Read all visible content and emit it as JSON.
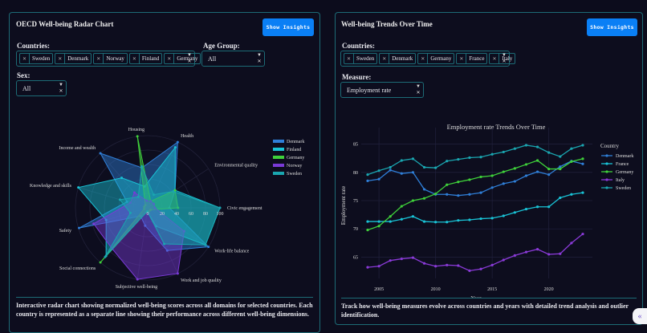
{
  "radar_panel": {
    "title": "OECD Well-being Radar Chart",
    "show_insights": "Show Insights",
    "countries_label": "Countries:",
    "countries": [
      "Sweden",
      "Denmark",
      "Norway",
      "Finland",
      "Germany"
    ],
    "age_label": "Age Group:",
    "age_value": "All",
    "sex_label": "Sex:",
    "sex_value": "All",
    "description": "Interactive radar chart showing normalized well-being scores across all domains for selected countries. Each country is represented as a separate line showing their performance across different well-being dimensions."
  },
  "trend_panel": {
    "title": "Well-being Trends Over Time",
    "show_insights": "Show Insights",
    "countries_label": "Countries:",
    "countries": [
      "Sweden",
      "Denmark",
      "Germany",
      "France",
      "Italy"
    ],
    "measure_label": "Measure:",
    "measure_value": "Employment rate",
    "description": "Track how well-being measures evolve across countries and years with detailed trend analysis and outlier identification."
  },
  "chart_data": [
    {
      "type": "radar",
      "axes": [
        "Housing",
        "Health",
        "Environmental quality",
        "Civic engagement",
        "Work-life balance",
        "Work and job quality",
        "Subjective well-being",
        "Social connections",
        "Safety",
        "Knowledge and skills",
        "Income and wealth"
      ],
      "radial_ticks": [
        0,
        20,
        40,
        60,
        80,
        100
      ],
      "range": [
        0,
        100
      ],
      "series": [
        {
          "name": "Denmark",
          "color": "#2f7fd8",
          "values": [
            56,
            100,
            45,
            30,
            100,
            65,
            25,
            15,
            99,
            30,
            100
          ]
        },
        {
          "name": "Finland",
          "color": "#19c3d6",
          "values": [
            30,
            92,
            45,
            100,
            95,
            28,
            5,
            88,
            60,
            100,
            55
          ]
        },
        {
          "name": "Germany",
          "color": "#3fd13a",
          "values": [
            100,
            10,
            45,
            42,
            5,
            5,
            5,
            100,
            5,
            5,
            5
          ]
        },
        {
          "name": "Norway",
          "color": "#7a3ad8",
          "values": [
            10,
            10,
            10,
            10,
            60,
            100,
            100,
            75,
            78,
            25,
            28
          ]
        },
        {
          "name": "Sweden",
          "color": "#1aa6b0",
          "values": [
            58,
            20,
            42,
            100,
            95,
            55,
            5,
            90,
            25,
            40,
            20
          ]
        }
      ],
      "legend_position": "right"
    },
    {
      "type": "line",
      "title": "Employment rate Trends Over Time",
      "xlabel": "Year",
      "ylabel": "Employment rate",
      "legend_title": "Country",
      "x": [
        2004,
        2005,
        2006,
        2007,
        2008,
        2009,
        2010,
        2011,
        2012,
        2013,
        2014,
        2015,
        2016,
        2017,
        2018,
        2019,
        2020,
        2021,
        2022,
        2023
      ],
      "xticks": [
        2005,
        2010,
        2015,
        2020
      ],
      "yticks": [
        65,
        70,
        75,
        80,
        85
      ],
      "ylim": [
        61.8,
        86.5
      ],
      "grid": true,
      "legend_position": "right",
      "series": [
        {
          "name": "Denmark",
          "color": "#2f7fd8",
          "values": [
            78.5,
            78.8,
            80.4,
            79.8,
            80.0,
            77.0,
            76.1,
            76.1,
            75.9,
            76.1,
            76.4,
            77.3,
            78.0,
            78.4,
            79.4,
            80.1,
            79.6,
            81.0,
            82.0,
            81.5
          ]
        },
        {
          "name": "France",
          "color": "#19c3d6",
          "values": [
            71.3,
            71.3,
            71.3,
            71.7,
            72.2,
            71.3,
            71.2,
            71.2,
            71.5,
            71.6,
            71.8,
            71.9,
            72.3,
            72.9,
            73.5,
            73.9,
            73.9,
            75.5,
            76.1,
            76.4
          ]
        },
        {
          "name": "Germany",
          "color": "#3fd13a",
          "values": [
            69.8,
            70.5,
            72.2,
            74.0,
            75.0,
            75.4,
            76.2,
            77.8,
            78.3,
            78.7,
            79.2,
            79.4,
            80.1,
            80.7,
            81.4,
            82.1,
            80.6,
            80.6,
            81.9,
            82.4
          ]
        },
        {
          "name": "Italy",
          "color": "#8a3ad8",
          "values": [
            63.2,
            63.4,
            64.4,
            64.7,
            64.9,
            63.9,
            63.4,
            63.6,
            63.5,
            62.6,
            62.9,
            63.6,
            64.5,
            65.3,
            65.9,
            66.4,
            65.5,
            65.6,
            67.5,
            69.1
          ]
        },
        {
          "name": "Sweden",
          "color": "#1aa6b0",
          "values": [
            79.6,
            80.3,
            80.9,
            82.1,
            82.4,
            80.9,
            80.8,
            82.0,
            82.3,
            82.6,
            82.7,
            83.2,
            83.6,
            84.2,
            84.8,
            84.5,
            83.5,
            82.8,
            84.2,
            84.8
          ]
        }
      ]
    }
  ]
}
